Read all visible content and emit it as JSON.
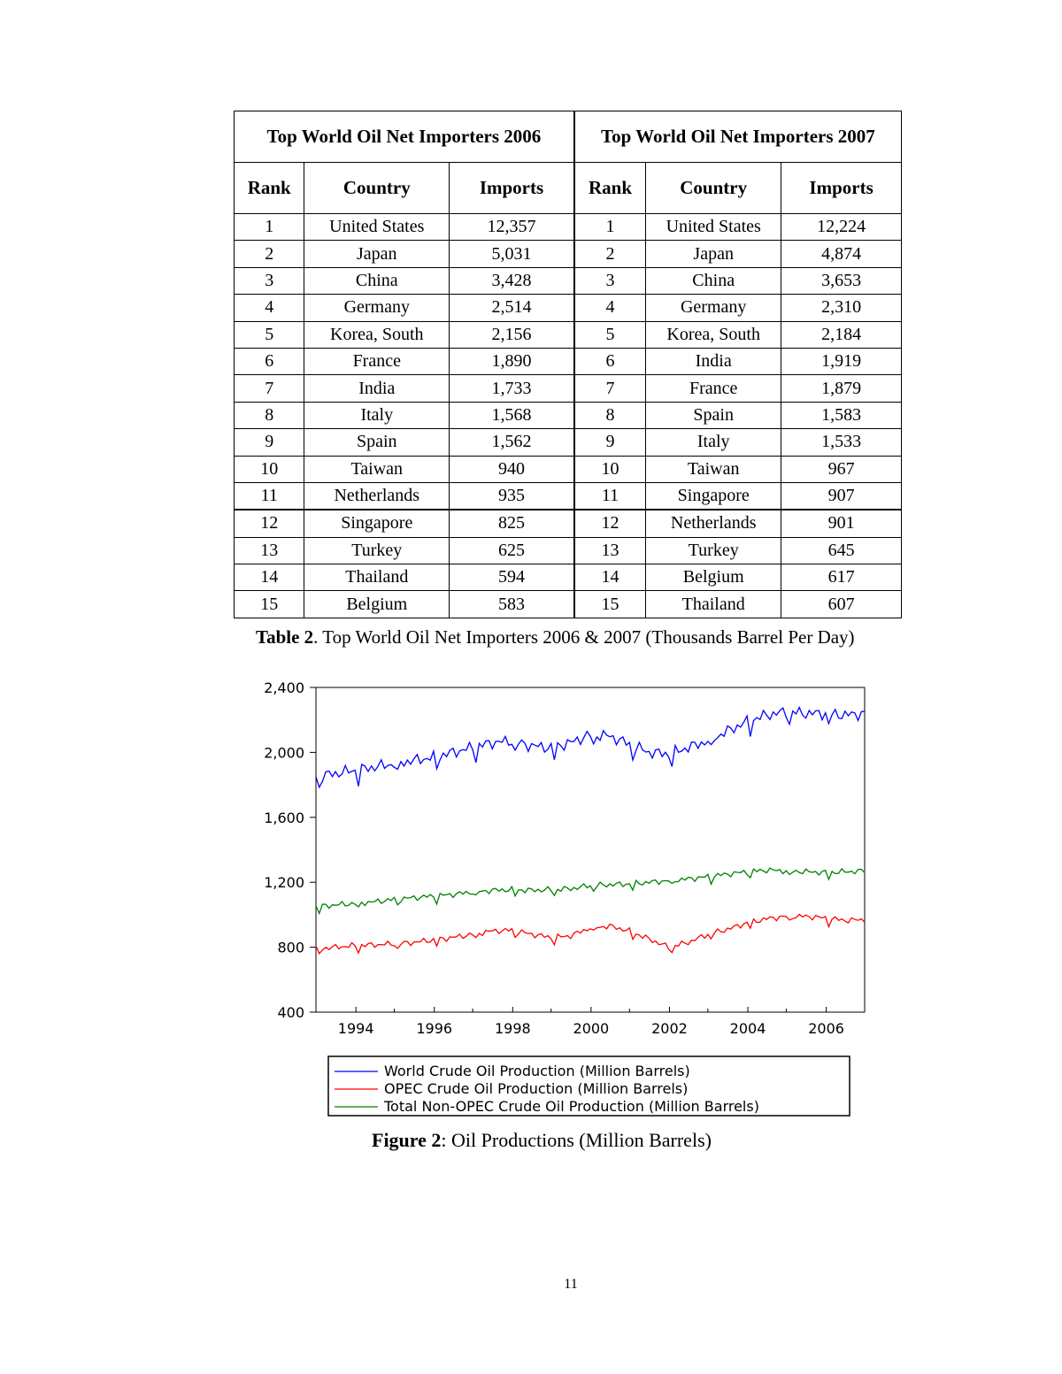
{
  "table": {
    "title_2006": "Top World Oil Net Importers 2006",
    "title_2007": "Top World Oil Net Importers 2007",
    "headers": [
      "Rank",
      "Country",
      "Imports"
    ],
    "rows_2006": [
      [
        "1",
        "United States",
        "12,357"
      ],
      [
        "2",
        "Japan",
        "5,031"
      ],
      [
        "3",
        "China",
        "3,428"
      ],
      [
        "4",
        "Germany",
        "2,514"
      ],
      [
        "5",
        "Korea, South",
        "2,156"
      ],
      [
        "6",
        "France",
        "1,890"
      ],
      [
        "7",
        "India",
        "1,733"
      ],
      [
        "8",
        "Italy",
        "1,568"
      ],
      [
        "9",
        "Spain",
        "1,562"
      ],
      [
        "10",
        "Taiwan",
        "940"
      ],
      [
        "11",
        "Netherlands",
        "935"
      ],
      [
        "12",
        "Singapore",
        "825"
      ],
      [
        "13",
        "Turkey",
        "625"
      ],
      [
        "14",
        "Thailand",
        "594"
      ],
      [
        "15",
        "Belgium",
        "583"
      ]
    ],
    "rows_2007": [
      [
        "1",
        "United States",
        "12,224"
      ],
      [
        "2",
        "Japan",
        "4,874"
      ],
      [
        "3",
        "China",
        "3,653"
      ],
      [
        "4",
        "Germany",
        "2,310"
      ],
      [
        "5",
        "Korea, South",
        "2,184"
      ],
      [
        "6",
        "India",
        "1,919"
      ],
      [
        "7",
        "France",
        "1,879"
      ],
      [
        "8",
        "Spain",
        "1,583"
      ],
      [
        "9",
        "Italy",
        "1,533"
      ],
      [
        "10",
        "Taiwan",
        "967"
      ],
      [
        "11",
        "Singapore",
        "907"
      ],
      [
        "12",
        "Netherlands",
        "901"
      ],
      [
        "13",
        "Turkey",
        "645"
      ],
      [
        "14",
        "Belgium",
        "617"
      ],
      [
        "15",
        "Thailand",
        "607"
      ]
    ]
  },
  "table_caption": {
    "label": "Table 2",
    "text": ". Top World Oil Net Importers 2006 & 2007 (Thousands Barrel Per Day)"
  },
  "figure_caption": {
    "label": "Figure 2",
    "text": ": Oil Productions (Million Barrels)"
  },
  "page_number": "11",
  "chart_data": {
    "type": "line",
    "title": "",
    "xlabel": "",
    "ylabel": "",
    "xlim": [
      1993.0,
      2007.0
    ],
    "ylim": [
      400,
      2400
    ],
    "yticks": [
      400,
      800,
      1200,
      1600,
      2000,
      2400
    ],
    "ytick_labels": [
      "400",
      "800",
      "1,200",
      "1,600",
      "2,000",
      "2,400"
    ],
    "xticks": [
      1994,
      1996,
      1998,
      2000,
      2002,
      2004,
      2006
    ],
    "xtick_labels": [
      "1994",
      "1996",
      "1998",
      "2000",
      "2002",
      "2004",
      "2006"
    ],
    "grid": false,
    "legend_position": "bottom",
    "series": [
      {
        "name": "World Crude Oil Production (Million Barrels)",
        "color": "#0000ff",
        "x": [
          1993.0,
          1993.5,
          1994.0,
          1994.5,
          1995.0,
          1995.5,
          1996.0,
          1996.5,
          1997.0,
          1997.5,
          1998.0,
          1998.5,
          1999.0,
          1999.5,
          2000.0,
          2000.5,
          2001.0,
          2001.5,
          2002.0,
          2002.5,
          2003.0,
          2003.5,
          2004.0,
          2004.5,
          2005.0,
          2005.5,
          2006.0,
          2006.5,
          2007.0
        ],
        "y": [
          1850,
          1870,
          1890,
          1910,
          1930,
          1950,
          1970,
          2000,
          2030,
          2060,
          2070,
          2040,
          2030,
          2060,
          2110,
          2100,
          2050,
          2000,
          1990,
          2030,
          2070,
          2130,
          2190,
          2230,
          2250,
          2240,
          2240,
          2230,
          2240
        ]
      },
      {
        "name": "OPEC Crude Oil Production (Million Barrels)",
        "color": "#ff0000",
        "x": [
          1993.0,
          1993.5,
          1994.0,
          1994.5,
          1995.0,
          1995.5,
          1996.0,
          1996.5,
          1997.0,
          1997.5,
          1998.0,
          1998.5,
          1999.0,
          1999.5,
          2000.0,
          2000.5,
          2001.0,
          2001.5,
          2002.0,
          2002.5,
          2003.0,
          2003.5,
          2004.0,
          2004.5,
          2005.0,
          2005.5,
          2006.0,
          2006.5,
          2007.0
        ],
        "y": [
          790,
          800,
          810,
          815,
          820,
          830,
          845,
          860,
          880,
          900,
          905,
          880,
          860,
          870,
          920,
          930,
          900,
          850,
          800,
          830,
          880,
          910,
          950,
          975,
          990,
          990,
          980,
          965,
          970
        ]
      },
      {
        "name": "Total Non-OPEC Crude Oil Production (Million Barrels)",
        "color": "#008000",
        "x": [
          1993.0,
          1993.5,
          1994.0,
          1994.5,
          1995.0,
          1995.5,
          1996.0,
          1996.5,
          1997.0,
          1997.5,
          1998.0,
          1998.5,
          1999.0,
          1999.5,
          2000.0,
          2000.5,
          2001.0,
          2001.5,
          2002.0,
          2002.5,
          2003.0,
          2003.5,
          2004.0,
          2004.5,
          2005.0,
          2005.5,
          2006.0,
          2006.5,
          2007.0
        ],
        "y": [
          1050,
          1060,
          1070,
          1080,
          1095,
          1105,
          1115,
          1125,
          1140,
          1150,
          1155,
          1150,
          1155,
          1160,
          1180,
          1185,
          1190,
          1200,
          1210,
          1220,
          1235,
          1250,
          1265,
          1275,
          1270,
          1265,
          1260,
          1265,
          1270
        ]
      }
    ]
  }
}
